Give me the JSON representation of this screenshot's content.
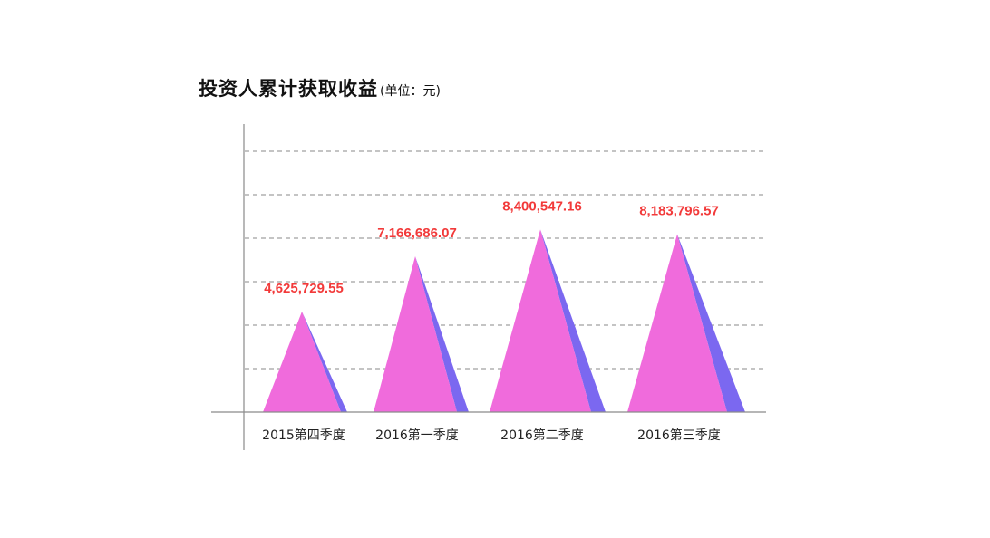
{
  "title": "投资人累计获取收益",
  "unit": "(单位：元)",
  "chart_data": {
    "type": "bar",
    "title": "投资人累计获取收益",
    "subtitle": "(单位：元)",
    "categories": [
      "2015第四季度",
      "2016第一季度",
      "2016第二季度",
      "2016第三季度"
    ],
    "values": [
      4625729.55,
      7166686.07,
      8400547.16,
      8183796.57
    ],
    "value_labels": [
      "4,625,729.55",
      "7,166,686.07",
      "8,400,547.16",
      "8,183,796.57"
    ],
    "xlabel": "",
    "ylabel": "",
    "ylim": [
      0,
      12000000
    ],
    "grid": true,
    "legend": "none",
    "colors": {
      "front": "#f06bdc",
      "side": "#7b68f0",
      "label": "#f23a3a",
      "grid": "#8a8a8a"
    }
  }
}
